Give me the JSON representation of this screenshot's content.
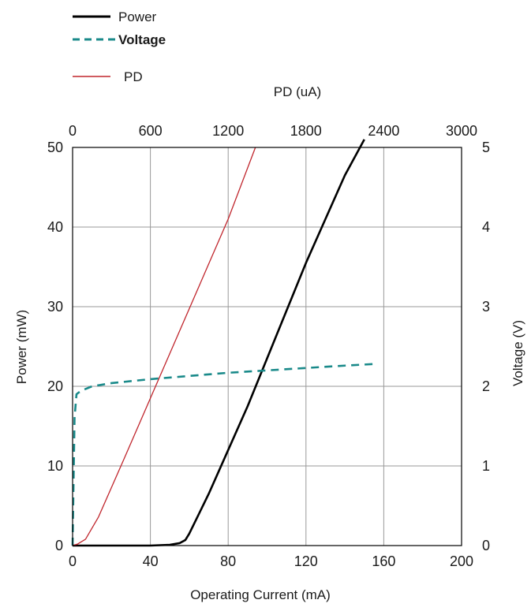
{
  "chart_data": {
    "type": "line",
    "xlabel": "Operating Current (mA)",
    "ylabel": "Power (mW)",
    "y2label": "Voltage (V)",
    "x2label": "PD (uA)",
    "xlim": [
      0,
      200
    ],
    "ylim": [
      0,
      50
    ],
    "y2lim": [
      0,
      5
    ],
    "x2lim": [
      0,
      3000
    ],
    "xticks": [
      0,
      40,
      80,
      120,
      160,
      200
    ],
    "yticks": [
      0,
      10,
      20,
      30,
      40,
      50
    ],
    "y2ticks": [
      0,
      1,
      2,
      3,
      4,
      5
    ],
    "x2ticks": [
      0,
      600,
      1200,
      1800,
      2400,
      3000
    ],
    "grid": true,
    "legend_position": "top-left, above plot",
    "series": [
      {
        "name": "Power",
        "axis": "x-bottom / y-left",
        "color": "#000000",
        "style": "solid",
        "x": [
          0,
          20,
          40,
          50,
          55,
          58,
          60,
          70,
          80,
          90,
          100,
          110,
          120,
          130,
          140,
          150
        ],
        "y": [
          0,
          0,
          0,
          0.1,
          0.3,
          0.7,
          1.5,
          6.5,
          12,
          17.5,
          23.5,
          29.5,
          35.5,
          41,
          46.5,
          51
        ]
      },
      {
        "name": "Voltage",
        "axis": "x-bottom / y-right",
        "color": "#1a8a8a",
        "style": "dashed",
        "x": [
          0,
          0.5,
          1,
          2,
          3,
          5,
          10,
          20,
          40,
          60,
          80,
          100,
          120,
          140,
          155
        ],
        "y": [
          0,
          0.8,
          1.6,
          1.9,
          1.92,
          1.95,
          2.0,
          2.04,
          2.09,
          2.13,
          2.17,
          2.2,
          2.23,
          2.26,
          2.28
        ]
      },
      {
        "name": "PD",
        "axis": "x-top / y-left",
        "color": "#c0262d",
        "style": "solid",
        "x": [
          0,
          40,
          100,
          200,
          400,
          600,
          800,
          1000,
          1200,
          1410
        ],
        "y": [
          0,
          0.2,
          0.8,
          3.6,
          11,
          18.5,
          26,
          33.5,
          41,
          50
        ]
      }
    ]
  },
  "legend": {
    "power": "Power",
    "voltage": "Voltage",
    "pd": "PD"
  },
  "colors": {
    "power": "#000000",
    "voltage": "#1a8a8a",
    "pd": "#c0262d",
    "grid": "#999999",
    "frame": "#000000"
  }
}
